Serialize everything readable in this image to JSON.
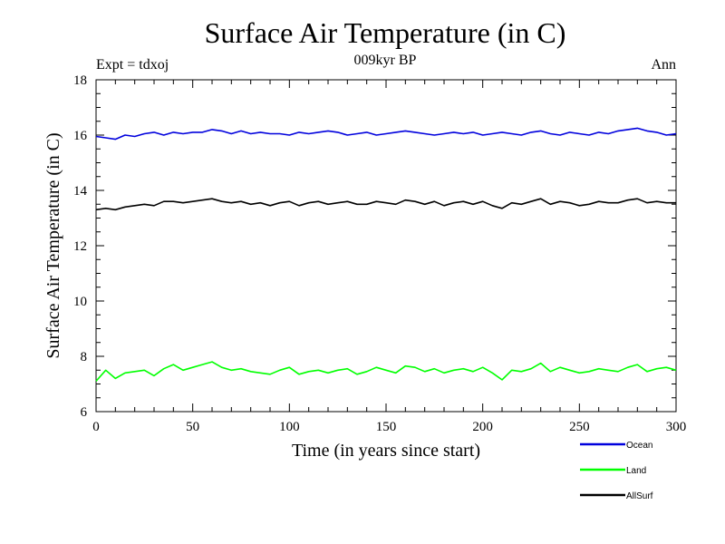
{
  "chart_data": {
    "type": "line",
    "title": "Surface Air Temperature (in C)",
    "subtitle_left": "Expt = tdxoj",
    "subtitle_center": "009kyr BP",
    "subtitle_right": "Ann",
    "xlabel": "Time (in years since start)",
    "ylabel": "Surface Air Temperature (in C)",
    "xlim": [
      0,
      300
    ],
    "ylim": [
      6,
      18
    ],
    "x_ticks": [
      0,
      50,
      100,
      150,
      200,
      250,
      300
    ],
    "y_ticks": [
      6,
      8,
      10,
      12,
      14,
      16,
      18
    ],
    "grid": false,
    "legend_position": "bottom-right",
    "x": [
      0,
      5,
      10,
      15,
      20,
      25,
      30,
      35,
      40,
      45,
      50,
      55,
      60,
      65,
      70,
      75,
      80,
      85,
      90,
      95,
      100,
      105,
      110,
      115,
      120,
      125,
      130,
      135,
      140,
      145,
      150,
      155,
      160,
      165,
      170,
      175,
      180,
      185,
      190,
      195,
      200,
      205,
      210,
      215,
      220,
      225,
      230,
      235,
      240,
      245,
      250,
      255,
      260,
      265,
      270,
      275,
      280,
      285,
      290,
      295,
      300
    ],
    "series": [
      {
        "name": "Ocean",
        "color": "#0000dd",
        "values": [
          15.95,
          15.9,
          15.85,
          16.0,
          15.95,
          16.05,
          16.1,
          16.0,
          16.1,
          16.05,
          16.1,
          16.1,
          16.2,
          16.15,
          16.05,
          16.15,
          16.05,
          16.1,
          16.05,
          16.05,
          16.0,
          16.1,
          16.05,
          16.1,
          16.15,
          16.1,
          16.0,
          16.05,
          16.1,
          16.0,
          16.05,
          16.1,
          16.15,
          16.1,
          16.05,
          16.0,
          16.05,
          16.1,
          16.05,
          16.1,
          16.0,
          16.05,
          16.1,
          16.05,
          16.0,
          16.1,
          16.15,
          16.05,
          16.0,
          16.1,
          16.05,
          16.0,
          16.1,
          16.05,
          16.15,
          16.2,
          16.25,
          16.15,
          16.1,
          16.0,
          16.05
        ]
      },
      {
        "name": "Land",
        "color": "#00ff00",
        "values": [
          7.1,
          7.5,
          7.2,
          7.4,
          7.45,
          7.5,
          7.3,
          7.55,
          7.7,
          7.5,
          7.6,
          7.7,
          7.8,
          7.6,
          7.5,
          7.55,
          7.45,
          7.4,
          7.35,
          7.5,
          7.6,
          7.35,
          7.45,
          7.5,
          7.4,
          7.5,
          7.55,
          7.35,
          7.45,
          7.6,
          7.5,
          7.4,
          7.65,
          7.6,
          7.45,
          7.55,
          7.4,
          7.5,
          7.55,
          7.45,
          7.6,
          7.4,
          7.15,
          7.5,
          7.45,
          7.55,
          7.75,
          7.45,
          7.6,
          7.5,
          7.4,
          7.45,
          7.55,
          7.5,
          7.45,
          7.6,
          7.7,
          7.45,
          7.55,
          7.6,
          7.5
        ]
      },
      {
        "name": "AllSurf",
        "color": "#000000",
        "values": [
          13.3,
          13.35,
          13.3,
          13.4,
          13.45,
          13.5,
          13.45,
          13.6,
          13.6,
          13.55,
          13.6,
          13.65,
          13.7,
          13.6,
          13.55,
          13.6,
          13.5,
          13.55,
          13.45,
          13.55,
          13.6,
          13.45,
          13.55,
          13.6,
          13.5,
          13.55,
          13.6,
          13.5,
          13.5,
          13.6,
          13.55,
          13.5,
          13.65,
          13.6,
          13.5,
          13.6,
          13.45,
          13.55,
          13.6,
          13.5,
          13.6,
          13.45,
          13.35,
          13.55,
          13.5,
          13.6,
          13.7,
          13.5,
          13.6,
          13.55,
          13.45,
          13.5,
          13.6,
          13.55,
          13.55,
          13.65,
          13.7,
          13.55,
          13.6,
          13.55,
          13.55
        ]
      }
    ]
  }
}
